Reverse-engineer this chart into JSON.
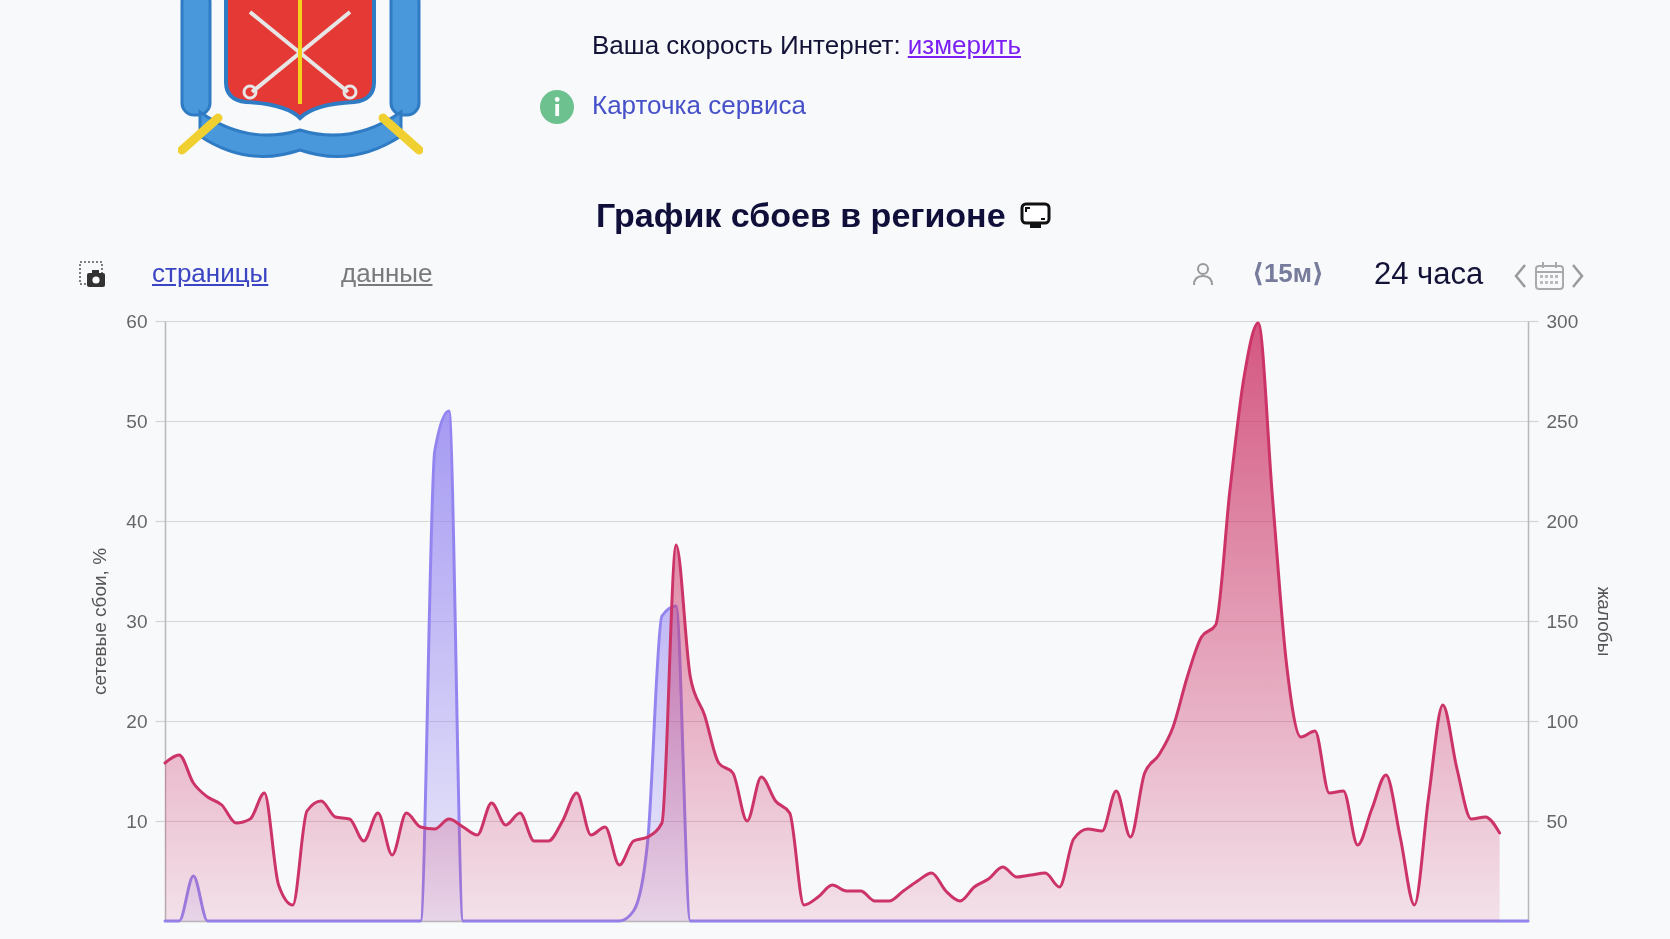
{
  "chart_data": {
    "type": "area",
    "title": "График сбоев в регионе",
    "ylabel": "сетевые сбои, %",
    "y2label": "жалобы",
    "annotations": [
      "Ваша скорость Интернет:",
      "измерить",
      "Карточка сервиса",
      "страницы",
      "данные",
      "⟨15м⟩",
      "24 часа"
    ],
    "categories": [
      null,
      null,
      null,
      null,
      null,
      null,
      null,
      null,
      null,
      null,
      null,
      null,
      null,
      null,
      null,
      null,
      null,
      null,
      null,
      null,
      null,
      null,
      null,
      null,
      null,
      null,
      null,
      null,
      null,
      null,
      null,
      null,
      null,
      null,
      null,
      null,
      null,
      null,
      null,
      null,
      null,
      null,
      null,
      null,
      null,
      null,
      null,
      null,
      null,
      null,
      null,
      null,
      null,
      null,
      null,
      null,
      null,
      null,
      null,
      null,
      null,
      null,
      null,
      null,
      null,
      null,
      null,
      null,
      null,
      null,
      null,
      null,
      null,
      null,
      null,
      null,
      null,
      null,
      null,
      null,
      null,
      null,
      null,
      null,
      null,
      null,
      null,
      null,
      null,
      null,
      null,
      null,
      null,
      null,
      null,
      null,
      null
    ],
    "series": [
      {
        "color": "#9385f0",
        "values": [
          0,
          0,
          4.5,
          0,
          0,
          0,
          0,
          0,
          0,
          0,
          0,
          0,
          0,
          0,
          0,
          0,
          0,
          0,
          0,
          47,
          51,
          0,
          0,
          0,
          0,
          0,
          0,
          0,
          0,
          0,
          0,
          0,
          0,
          1,
          8,
          30.5,
          31.5,
          0,
          0,
          0,
          0,
          0,
          0,
          0,
          0,
          0,
          0,
          0,
          0,
          0,
          0,
          0,
          0,
          0,
          0,
          0,
          0,
          0,
          0,
          0,
          0,
          0,
          0,
          0,
          0,
          0,
          0,
          0,
          0,
          0,
          0,
          0,
          0,
          0,
          0,
          0,
          0,
          0,
          0,
          0,
          0,
          0,
          0,
          0,
          0,
          0,
          0,
          0,
          0,
          0,
          0,
          0,
          0,
          0,
          0,
          0,
          0
        ]
      },
      {
        "color": "#cc3366",
        "axis": "y2",
        "values": [
          79,
          83,
          69,
          62,
          58,
          49,
          51,
          64,
          18,
          8,
          55,
          60,
          52,
          51,
          40,
          54,
          33,
          54,
          47,
          46,
          51,
          47,
          43,
          59,
          48,
          54,
          40,
          40,
          50,
          64,
          43,
          47,
          28,
          40,
          42,
          49,
          188,
          122,
          103,
          79,
          74,
          50,
          72,
          60,
          54,
          8,
          12,
          18,
          15,
          15,
          10,
          10,
          15,
          20,
          24,
          15,
          10,
          17,
          21,
          27,
          22,
          23,
          24,
          17,
          41,
          46,
          45,
          65,
          42,
          74,
          83,
          97,
          122,
          142,
          148,
          215,
          272,
          299,
          212,
          128,
          92,
          95,
          64,
          65,
          38,
          56,
          73,
          42,
          8,
          62,
          108,
          76,
          51,
          52,
          44,
          null,
          null
        ]
      }
    ],
    "ylim": [
      0,
      60
    ],
    "yticks": [
      10,
      20,
      30,
      40,
      50,
      60
    ],
    "y2lim": [
      0,
      300
    ],
    "y2ticks": [
      50,
      100,
      150,
      200,
      250,
      300
    ],
    "grid": "y"
  }
}
